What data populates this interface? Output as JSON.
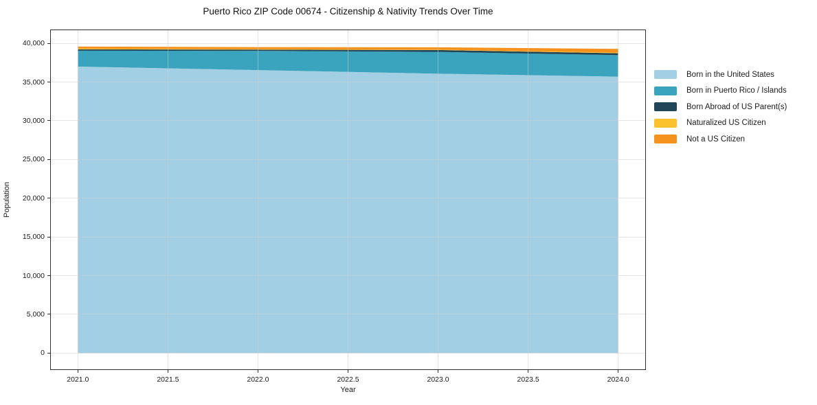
{
  "title": "Puerto Rico ZIP Code 00674 - Citizenship & Nativity Trends Over Time",
  "chart_data": {
    "type": "area",
    "stacked": true,
    "title": "Puerto Rico ZIP Code 00674 - Citizenship & Nativity Trends Over Time",
    "xlabel": "Year",
    "ylabel": "Population",
    "x": [
      2021,
      2022,
      2023,
      2024
    ],
    "series": [
      {
        "name": "Born in the United States",
        "color": "#a3cfe4",
        "values": [
          37000,
          36550,
          36080,
          35700
        ]
      },
      {
        "name": "Born in Puerto Rico / Islands",
        "color": "#3aa4be",
        "values": [
          2050,
          2480,
          2820,
          2780
        ]
      },
      {
        "name": "Born Abroad of US Parent(s)",
        "color": "#1f4556",
        "values": [
          180,
          160,
          240,
          240
        ]
      },
      {
        "name": "Naturalized US Citizen",
        "color": "#fbc22d",
        "values": [
          90,
          60,
          40,
          80
        ]
      },
      {
        "name": "Not a US Citizen",
        "color": "#f5921e",
        "values": [
          270,
          270,
          310,
          490
        ]
      }
    ],
    "totals": [
      39590,
      39520,
      39490,
      39290
    ],
    "xlim": [
      2020.85,
      2024.15
    ],
    "ylim": [
      -2100,
      41700
    ],
    "x_ticks": [
      {
        "value": 2021.0,
        "label": "2021.0"
      },
      {
        "value": 2021.5,
        "label": "2021.5"
      },
      {
        "value": 2022.0,
        "label": "2022.0"
      },
      {
        "value": 2022.5,
        "label": "2022.5"
      },
      {
        "value": 2023.0,
        "label": "2023.0"
      },
      {
        "value": 2023.5,
        "label": "2023.5"
      },
      {
        "value": 2024.0,
        "label": "2024.0"
      }
    ],
    "y_ticks": [
      {
        "value": 0,
        "label": "0"
      },
      {
        "value": 5000,
        "label": "5,000"
      },
      {
        "value": 10000,
        "label": "10,000"
      },
      {
        "value": 15000,
        "label": "15,000"
      },
      {
        "value": 20000,
        "label": "20,000"
      },
      {
        "value": 25000,
        "label": "25,000"
      },
      {
        "value": 30000,
        "label": "30,000"
      },
      {
        "value": 35000,
        "label": "35,000"
      },
      {
        "value": 40000,
        "label": "40,000"
      }
    ],
    "grid": true,
    "legend_position": "right-outside"
  }
}
